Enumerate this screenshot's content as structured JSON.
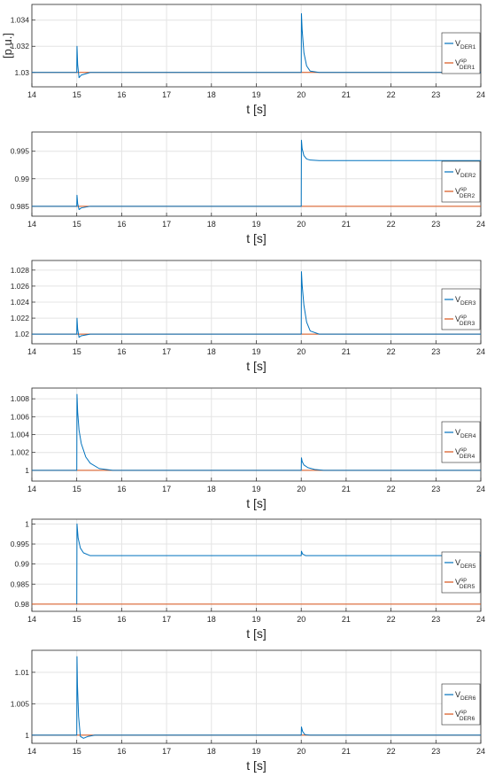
{
  "figure": {
    "y_label": "[p.u.]",
    "x_label": "t [s]"
  },
  "colors": {
    "measured": "#0072BD",
    "setpoint": "#D95319",
    "grid": "#e4e4e4",
    "axis": "#262626"
  },
  "chart_data": [
    {
      "type": "line",
      "x_ticks": [
        "14",
        "15",
        "16",
        "17",
        "18",
        "19",
        "20",
        "21",
        "22",
        "23",
        "24"
      ],
      "y_ticks": [
        "1.03",
        "1.032",
        "1.034"
      ],
      "xlim": [
        14,
        24
      ],
      "ylim": [
        1.0289,
        1.0352
      ],
      "xlabel": "t [s]",
      "ylabel": "[p.u.]",
      "grid": true,
      "legend": "right",
      "series": [
        {
          "name": "V_DER1",
          "legend_main": "V",
          "legend_sup": "",
          "legend_sub": "DER1",
          "color": "#0072BD",
          "x": [
            14,
            15,
            15.005,
            15.02,
            15.05,
            15.1,
            15.3,
            20,
            20.005,
            20.02,
            20.06,
            20.12,
            20.2,
            20.4,
            21,
            24
          ],
          "y": [
            1.03,
            1.03,
            1.032,
            1.0306,
            1.0296,
            1.0298,
            1.03,
            1.03,
            1.0345,
            1.0333,
            1.0315,
            1.0305,
            1.0301,
            1.03,
            1.03,
            1.03
          ]
        },
        {
          "name": "V_DER1^sp",
          "legend_main": "V",
          "legend_sup": "sp",
          "legend_sub": "DER1",
          "color": "#D95319",
          "x": [
            14,
            24
          ],
          "y": [
            1.03,
            1.03
          ]
        }
      ]
    },
    {
      "type": "line",
      "x_ticks": [
        "14",
        "15",
        "16",
        "17",
        "18",
        "19",
        "20",
        "21",
        "22",
        "23",
        "24"
      ],
      "y_ticks": [
        "0.985",
        "0.99",
        "0.995"
      ],
      "xlim": [
        14,
        24
      ],
      "ylim": [
        0.9832,
        0.9985
      ],
      "xlabel": "t [s]",
      "ylabel": "[p.u.]",
      "grid": true,
      "legend": "right",
      "series": [
        {
          "name": "V_DER2",
          "legend_main": "V",
          "legend_sup": "",
          "legend_sub": "DER2",
          "color": "#0072BD",
          "x": [
            14,
            15,
            15.005,
            15.02,
            15.05,
            15.1,
            15.3,
            20,
            20.005,
            20.02,
            20.06,
            20.12,
            20.2,
            20.4,
            24
          ],
          "y": [
            0.985,
            0.985,
            0.987,
            0.9855,
            0.9844,
            0.9847,
            0.985,
            0.985,
            0.997,
            0.9955,
            0.9942,
            0.9936,
            0.9934,
            0.9933,
            0.9933
          ]
        },
        {
          "name": "V_DER2^sp",
          "legend_main": "V",
          "legend_sup": "sp",
          "legend_sub": "DER2",
          "color": "#D95319",
          "x": [
            14,
            24
          ],
          "y": [
            0.985,
            0.985
          ]
        }
      ]
    },
    {
      "type": "line",
      "x_ticks": [
        "14",
        "15",
        "16",
        "17",
        "18",
        "19",
        "20",
        "21",
        "22",
        "23",
        "24"
      ],
      "y_ticks": [
        "1.02",
        "1.022",
        "1.024",
        "1.026",
        "1.028"
      ],
      "xlim": [
        14,
        24
      ],
      "ylim": [
        1.0188,
        1.0292
      ],
      "xlabel": "t [s]",
      "ylabel": "[p.u.]",
      "grid": true,
      "legend": "right",
      "series": [
        {
          "name": "V_DER3",
          "legend_main": "V",
          "legend_sup": "",
          "legend_sub": "DER3",
          "color": "#0072BD",
          "x": [
            14,
            15,
            15.005,
            15.02,
            15.05,
            15.1,
            15.3,
            20,
            20.005,
            20.02,
            20.06,
            20.12,
            20.2,
            20.4,
            24
          ],
          "y": [
            1.02,
            1.02,
            1.022,
            1.0206,
            1.0196,
            1.0198,
            1.02,
            1.02,
            1.0278,
            1.0262,
            1.0236,
            1.0215,
            1.0204,
            1.02,
            1.02
          ]
        },
        {
          "name": "V_DER3^sp",
          "legend_main": "V",
          "legend_sup": "sp",
          "legend_sub": "DER3",
          "color": "#D95319",
          "x": [
            14,
            24
          ],
          "y": [
            1.02,
            1.02
          ]
        }
      ]
    },
    {
      "type": "line",
      "x_ticks": [
        "14",
        "15",
        "16",
        "17",
        "18",
        "19",
        "20",
        "21",
        "22",
        "23",
        "24"
      ],
      "y_ticks": [
        "1",
        "1.002",
        "1.004",
        "1.006",
        "1.008"
      ],
      "xlim": [
        14,
        24
      ],
      "ylim": [
        0.9988,
        1.0092
      ],
      "xlabel": "t [s]",
      "ylabel": "[p.u.]",
      "grid": true,
      "legend": "right",
      "series": [
        {
          "name": "V_DER4",
          "legend_main": "V",
          "legend_sup": "",
          "legend_sub": "DER4",
          "color": "#0072BD",
          "x": [
            14,
            15,
            15.005,
            15.02,
            15.05,
            15.1,
            15.2,
            15.3,
            15.5,
            15.8,
            16,
            20,
            20.005,
            20.02,
            20.06,
            20.15,
            20.3,
            20.5,
            24
          ],
          "y": [
            1,
            1,
            1.0085,
            1.0065,
            1.0045,
            1.003,
            1.0015,
            1.0008,
            1.0002,
            1,
            1,
            1,
            1.0014,
            1.001,
            1.0006,
            1.0003,
            1.0001,
            1,
            1
          ]
        },
        {
          "name": "V_DER4^sp",
          "legend_main": "V",
          "legend_sup": "sp",
          "legend_sub": "DER4",
          "color": "#D95319",
          "x": [
            14,
            24
          ],
          "y": [
            1,
            1
          ]
        }
      ]
    },
    {
      "type": "line",
      "x_ticks": [
        "14",
        "15",
        "16",
        "17",
        "18",
        "19",
        "20",
        "21",
        "22",
        "23",
        "24"
      ],
      "y_ticks": [
        "0.98",
        "0.985",
        "0.99",
        "0.995",
        "1"
      ],
      "xlim": [
        14,
        24
      ],
      "ylim": [
        0.9782,
        1.0012
      ],
      "xlabel": "t [s]",
      "ylabel": "[p.u.]",
      "grid": true,
      "legend": "right",
      "series": [
        {
          "name": "V_DER5",
          "legend_main": "V",
          "legend_sup": "",
          "legend_sub": "DER5",
          "color": "#0072BD",
          "x": [
            15,
            15.005,
            15.03,
            15.08,
            15.15,
            15.3,
            20,
            20.005,
            20.03,
            20.1,
            24
          ],
          "y": [
            0.98,
            1.0,
            0.9965,
            0.994,
            0.9928,
            0.9921,
            0.9921,
            0.9932,
            0.9925,
            0.9921,
            0.9921
          ]
        },
        {
          "name": "V_DER5^sp",
          "legend_main": "V",
          "legend_sup": "sp",
          "legend_sub": "DER5",
          "color": "#D95319",
          "x": [
            14,
            24
          ],
          "y": [
            0.98,
            0.98
          ]
        }
      ]
    },
    {
      "type": "line",
      "x_ticks": [
        "14",
        "15",
        "16",
        "17",
        "18",
        "19",
        "20",
        "21",
        "22",
        "23",
        "24"
      ],
      "y_ticks": [
        "1",
        "1.005",
        "1.01"
      ],
      "xlim": [
        14,
        24
      ],
      "ylim": [
        0.9987,
        1.0135
      ],
      "xlabel": "t [s]",
      "ylabel": "[p.u.]",
      "grid": true,
      "legend": "right",
      "series": [
        {
          "name": "V_DER6",
          "legend_main": "V",
          "legend_sup": "",
          "legend_sub": "DER6",
          "color": "#0072BD",
          "x": [
            14,
            15,
            15.005,
            15.015,
            15.04,
            15.08,
            15.15,
            15.25,
            15.4,
            20,
            20.005,
            20.03,
            20.08,
            20.2,
            24
          ],
          "y": [
            1,
            1,
            1.0125,
            1.008,
            1.003,
            0.9998,
            0.9995,
            0.9998,
            1,
            1,
            1.0013,
            1.0006,
            1.0001,
            1,
            1
          ]
        },
        {
          "name": "V_DER6^sp",
          "legend_main": "V",
          "legend_sup": "sp",
          "legend_sub": "DER6",
          "color": "#D95319",
          "x": [
            14,
            24
          ],
          "y": [
            1,
            1
          ]
        }
      ]
    }
  ]
}
